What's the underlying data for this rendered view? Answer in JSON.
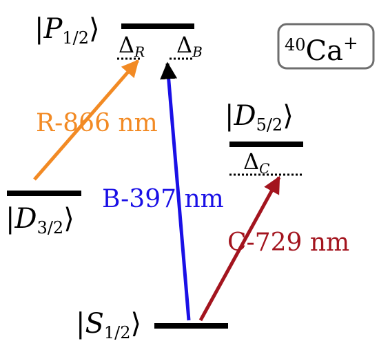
{
  "species": {
    "mass": "40",
    "element": "Ca",
    "charge": "+"
  },
  "levels": {
    "p12": {
      "name": "P",
      "sub": "1/2"
    },
    "d32": {
      "name": "D",
      "sub": "3/2"
    },
    "d52": {
      "name": "D",
      "sub": "5/2"
    },
    "s12": {
      "name": "S",
      "sub": "1/2"
    }
  },
  "detunings": {
    "r": {
      "symbol": "Δ",
      "sub": "R"
    },
    "b": {
      "symbol": "Δ",
      "sub": "B"
    },
    "c": {
      "symbol": "Δ",
      "sub": "C"
    }
  },
  "transitions": {
    "r866": {
      "label": "R-866 nm",
      "color": "#f28a24"
    },
    "b397": {
      "label": "B-397 nm",
      "color": "#1a10e6"
    },
    "c729": {
      "label": "C-729 nm",
      "color": "#a3141e"
    }
  }
}
